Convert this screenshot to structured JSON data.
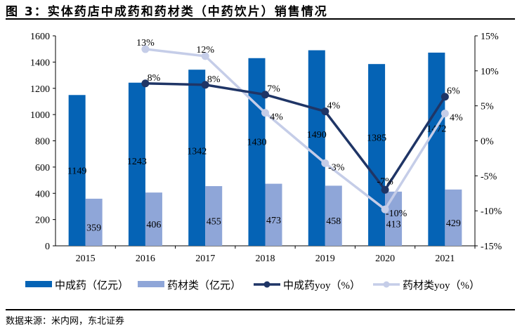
{
  "title": "图 3：实体药店中成药和药材类（中药饮片）销售情况",
  "source": "数据来源：米内网，东北证券",
  "chart_data": {
    "type": "bar+line",
    "categories": [
      "2015",
      "2016",
      "2017",
      "2018",
      "2019",
      "2020",
      "2021"
    ],
    "left_axis": {
      "ylim": [
        0,
        1600
      ],
      "ticks": [
        0,
        200,
        400,
        600,
        800,
        1000,
        1200,
        1400,
        1600
      ]
    },
    "right_axis": {
      "ylim": [
        -15,
        15
      ],
      "ticks": [
        "-15%",
        "-10%",
        "-5%",
        "0%",
        "5%",
        "10%",
        "15%"
      ],
      "tick_values": [
        -15,
        -10,
        -5,
        0,
        5,
        10,
        15
      ]
    },
    "bar_series": [
      {
        "name": "中成药（亿元）",
        "color": "#0563b5",
        "values": [
          1149,
          1243,
          1342,
          1430,
          1490,
          1385,
          1472
        ]
      },
      {
        "name": "药材类（亿元）",
        "color": "#8fa6d8",
        "values": [
          359,
          406,
          455,
          473,
          458,
          413,
          429
        ]
      }
    ],
    "line_series": [
      {
        "name": "中成药yoy（%）",
        "color": "#1f3566",
        "values": [
          null,
          8.2,
          8.0,
          6.6,
          4.2,
          -7.0,
          6.3
        ],
        "labels": [
          "",
          "8%",
          "8%",
          "7%",
          "4%",
          "-7%",
          "6%"
        ]
      },
      {
        "name": "药材类yoy（%）",
        "color": "#c5cde8",
        "values": [
          null,
          13.1,
          12.1,
          4.0,
          -3.2,
          -9.8,
          3.9
        ],
        "labels": [
          "",
          "13%",
          "12%",
          "4%",
          "-3%",
          "-10%",
          "4%"
        ]
      }
    ],
    "legend_position": "bottom",
    "grid": false
  }
}
